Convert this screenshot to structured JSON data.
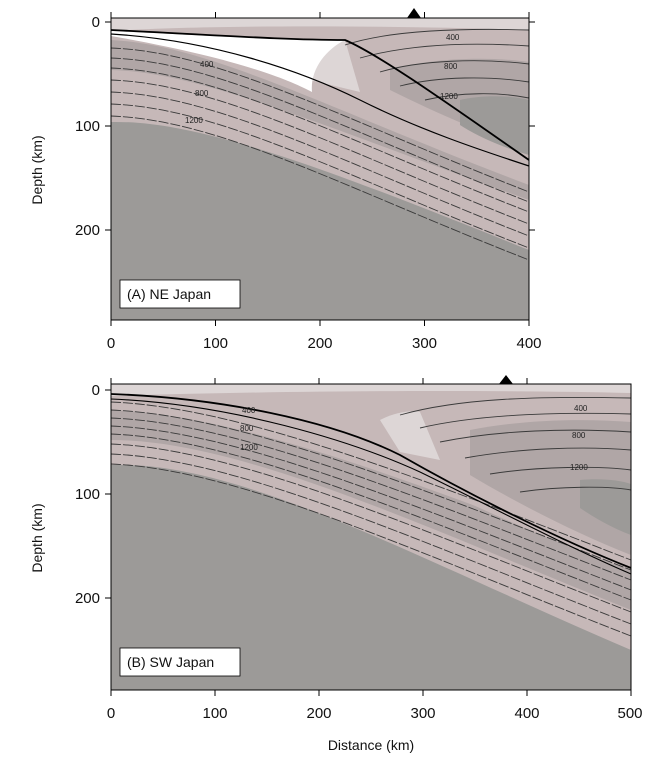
{
  "colors": {
    "deep_mantle": "#9c9a98",
    "warm_shade": "#c6b8b8",
    "mid_shade": "#b0a6a6",
    "light_shade": "#ddd6d6",
    "cold_wedge": "#ffffff",
    "isotherm": "#3a3a3a",
    "slab_surface": "#000000"
  },
  "icons": {
    "volcano": "triangle-marker-icon"
  },
  "panels": [
    {
      "label": "(A) NE Japan",
      "ylabel": "Depth (km)",
      "xlabel": "",
      "x_ticks": [
        "0",
        "100",
        "200",
        "300",
        "400"
      ],
      "y_ticks": [
        "0",
        "100",
        "200"
      ],
      "xlim": [
        0,
        400
      ],
      "ylim": [
        0,
        290
      ],
      "volcano_x_km": 290,
      "isotherm_labels_slab": [
        "400",
        "800",
        "1200"
      ],
      "isotherm_labels_wedge": [
        "400",
        "800",
        "1200"
      ]
    },
    {
      "label": "(B) SW Japan",
      "ylabel": "Depth (km)",
      "xlabel": "Distance (km)",
      "x_ticks": [
        "0",
        "100",
        "200",
        "300",
        "400",
        "500"
      ],
      "y_ticks": [
        "0",
        "100",
        "200"
      ],
      "xlim": [
        0,
        500
      ],
      "ylim": [
        0,
        290
      ],
      "volcano_x_km": 375,
      "isotherm_labels_slab": [
        "400",
        "800",
        "1200"
      ],
      "isotherm_labels_wedge": [
        "400",
        "800",
        "1200"
      ]
    }
  ]
}
